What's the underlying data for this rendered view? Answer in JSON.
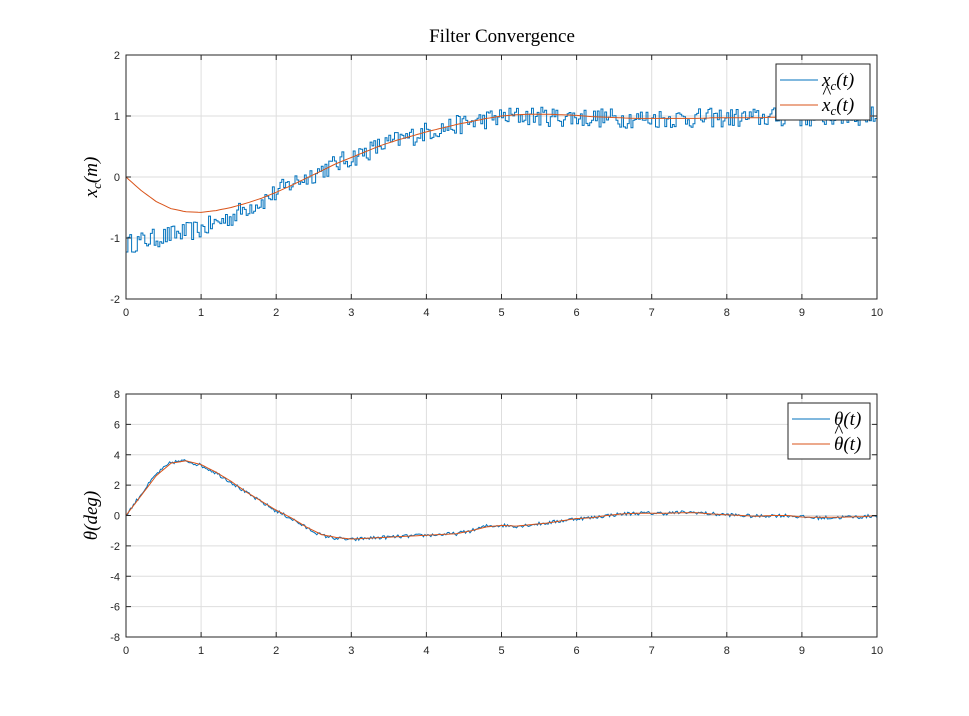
{
  "title": "Filter Convergence",
  "colors": {
    "measured": "#0072BD",
    "estimate": "#D95319",
    "grid": "#dedede",
    "axis": "#262626"
  },
  "chart_data": [
    {
      "type": "line",
      "ylabel": "x_c(m)",
      "ylabel_parts": {
        "main": "x",
        "sub": "c",
        "rest": "(m)"
      },
      "xlim": [
        0,
        10
      ],
      "ylim": [
        -2,
        2
      ],
      "xticks": [
        "0",
        "1",
        "2",
        "3",
        "4",
        "5",
        "6",
        "7",
        "8",
        "9",
        "10"
      ],
      "yticks": [
        "-2",
        "-1",
        "0",
        "1",
        "2"
      ],
      "grid": true,
      "legend_position": "top-right",
      "series": [
        {
          "name": "x_c(t)",
          "legend": {
            "main": "x",
            "sub": "c",
            "rest": "(t)",
            "hat": false
          },
          "style": "noisy-stairs",
          "x": [
            0,
            0.2,
            0.4,
            0.6,
            0.8,
            1.0,
            1.2,
            1.4,
            1.6,
            1.8,
            2.0,
            2.2,
            2.4,
            2.6,
            2.8,
            3.0,
            3.2,
            3.4,
            3.6,
            3.8,
            4.0,
            4.2,
            4.4,
            4.6,
            4.8,
            5.0,
            5.2,
            5.4,
            5.6,
            5.8,
            6.0,
            6.2,
            6.4,
            6.6,
            6.8,
            7.0,
            7.2,
            7.4,
            7.6,
            7.8,
            8.0,
            8.2,
            8.4,
            8.6,
            8.8,
            9.0,
            9.2,
            9.4,
            9.6,
            9.8,
            10.0
          ],
          "y": [
            -1.1,
            -1.05,
            -1.0,
            -0.95,
            -0.9,
            -0.85,
            -0.75,
            -0.65,
            -0.5,
            -0.4,
            -0.25,
            -0.1,
            0.0,
            0.12,
            0.22,
            0.32,
            0.42,
            0.52,
            0.6,
            0.67,
            0.75,
            0.8,
            0.85,
            0.9,
            0.95,
            0.98,
            1.0,
            1.0,
            0.99,
            0.98,
            0.98,
            0.97,
            0.97,
            0.96,
            0.96,
            0.96,
            0.96,
            0.96,
            0.96,
            0.97,
            0.97,
            0.97,
            0.97,
            0.98,
            0.98,
            0.98,
            0.98,
            0.99,
            0.99,
            1.0,
            1.0
          ],
          "noise": 0.16
        },
        {
          "name": "x̂_c(t)",
          "legend": {
            "main": "x",
            "sub": "c",
            "rest": "(t)",
            "hat": true
          },
          "style": "smooth",
          "x": [
            0,
            0.2,
            0.4,
            0.6,
            0.8,
            1.0,
            1.2,
            1.4,
            1.6,
            1.8,
            2.0,
            2.2,
            2.4,
            2.6,
            2.8,
            3.0,
            3.2,
            3.4,
            3.6,
            3.8,
            4.0,
            4.2,
            4.4,
            4.6,
            4.8,
            5.0,
            5.2,
            5.4,
            5.6,
            5.8,
            6.0,
            6.2,
            6.4,
            6.6,
            6.8,
            7.0,
            7.2,
            7.4,
            7.6,
            7.8,
            8.0,
            8.2,
            8.4,
            8.6,
            8.8,
            9.0,
            9.2,
            9.4,
            9.6,
            9.8,
            10.0
          ],
          "y": [
            0,
            -0.22,
            -0.4,
            -0.52,
            -0.57,
            -0.58,
            -0.55,
            -0.5,
            -0.43,
            -0.35,
            -0.25,
            -0.14,
            -0.02,
            0.1,
            0.22,
            0.32,
            0.42,
            0.52,
            0.6,
            0.67,
            0.74,
            0.8,
            0.86,
            0.91,
            0.96,
            1.0,
            1.02,
            1.03,
            1.03,
            1.02,
            1.01,
            0.99,
            0.98,
            0.97,
            0.96,
            0.96,
            0.96,
            0.96,
            0.96,
            0.97,
            0.97,
            0.97,
            0.97,
            0.98,
            0.98,
            0.98,
            0.98,
            0.99,
            0.99,
            1.0,
            1.0
          ],
          "noise": 0
        }
      ]
    },
    {
      "type": "line",
      "ylabel": "θ(deg)",
      "ylabel_parts": {
        "main": "θ",
        "sub": "",
        "rest": "(deg)"
      },
      "xlim": [
        0,
        10
      ],
      "ylim": [
        -8,
        8
      ],
      "xticks": [
        "0",
        "1",
        "2",
        "3",
        "4",
        "5",
        "6",
        "7",
        "8",
        "9",
        "10"
      ],
      "yticks": [
        "-8",
        "-6",
        "-4",
        "-2",
        "0",
        "2",
        "4",
        "6",
        "8"
      ],
      "grid": true,
      "legend_position": "top-right",
      "series": [
        {
          "name": "θ(t)",
          "legend": {
            "main": "θ",
            "sub": "",
            "rest": "(t)",
            "hat": false
          },
          "style": "noisy",
          "x": [
            0,
            0.2,
            0.4,
            0.6,
            0.8,
            1.0,
            1.2,
            1.4,
            1.6,
            1.8,
            2.0,
            2.2,
            2.4,
            2.6,
            2.8,
            3.0,
            3.2,
            3.4,
            3.6,
            3.8,
            4.0,
            4.2,
            4.4,
            4.6,
            4.8,
            5.0,
            5.2,
            5.4,
            5.6,
            5.8,
            6.0,
            6.2,
            6.4,
            6.6,
            6.8,
            7.0,
            7.2,
            7.4,
            7.6,
            7.8,
            8.0,
            8.2,
            8.4,
            8.6,
            8.8,
            9.0,
            9.2,
            9.4,
            9.6,
            9.8,
            10.0
          ],
          "y": [
            0,
            1.4,
            2.7,
            3.5,
            3.6,
            3.3,
            2.8,
            2.2,
            1.5,
            0.9,
            0.3,
            -0.2,
            -0.8,
            -1.3,
            -1.5,
            -1.6,
            -1.5,
            -1.45,
            -1.4,
            -1.35,
            -1.3,
            -1.25,
            -1.2,
            -1.0,
            -0.7,
            -0.65,
            -0.7,
            -0.6,
            -0.5,
            -0.35,
            -0.2,
            -0.15,
            0,
            0.1,
            0.15,
            0.15,
            0.15,
            0.2,
            0.2,
            0.1,
            0.05,
            0,
            -0.05,
            0,
            0,
            -0.1,
            -0.15,
            -0.15,
            -0.1,
            -0.1,
            0
          ],
          "noise": 0.12
        },
        {
          "name": "θ̂(t)",
          "legend": {
            "main": "θ",
            "sub": "",
            "rest": "(t)",
            "hat": true
          },
          "style": "smooth",
          "x": [
            0,
            0.2,
            0.4,
            0.6,
            0.8,
            1.0,
            1.2,
            1.4,
            1.6,
            1.8,
            2.0,
            2.2,
            2.4,
            2.6,
            2.8,
            3.0,
            3.2,
            3.4,
            3.6,
            3.8,
            4.0,
            4.2,
            4.4,
            4.6,
            4.8,
            5.0,
            5.2,
            5.4,
            5.6,
            5.8,
            6.0,
            6.2,
            6.4,
            6.6,
            6.8,
            7.0,
            7.2,
            7.4,
            7.6,
            7.8,
            8.0,
            8.2,
            8.4,
            8.6,
            8.8,
            9.0,
            9.2,
            9.4,
            9.6,
            9.8,
            10.0
          ],
          "y": [
            0,
            1.3,
            2.6,
            3.45,
            3.6,
            3.35,
            2.85,
            2.25,
            1.55,
            0.95,
            0.35,
            -0.15,
            -0.75,
            -1.25,
            -1.45,
            -1.55,
            -1.5,
            -1.45,
            -1.4,
            -1.35,
            -1.3,
            -1.25,
            -1.2,
            -1.0,
            -0.75,
            -0.65,
            -0.7,
            -0.6,
            -0.5,
            -0.35,
            -0.2,
            -0.15,
            0,
            0.1,
            0.15,
            0.15,
            0.15,
            0.18,
            0.18,
            0.1,
            0.05,
            0,
            -0.05,
            0,
            0,
            -0.1,
            -0.12,
            -0.12,
            -0.1,
            -0.08,
            0
          ],
          "noise": 0
        }
      ]
    }
  ]
}
